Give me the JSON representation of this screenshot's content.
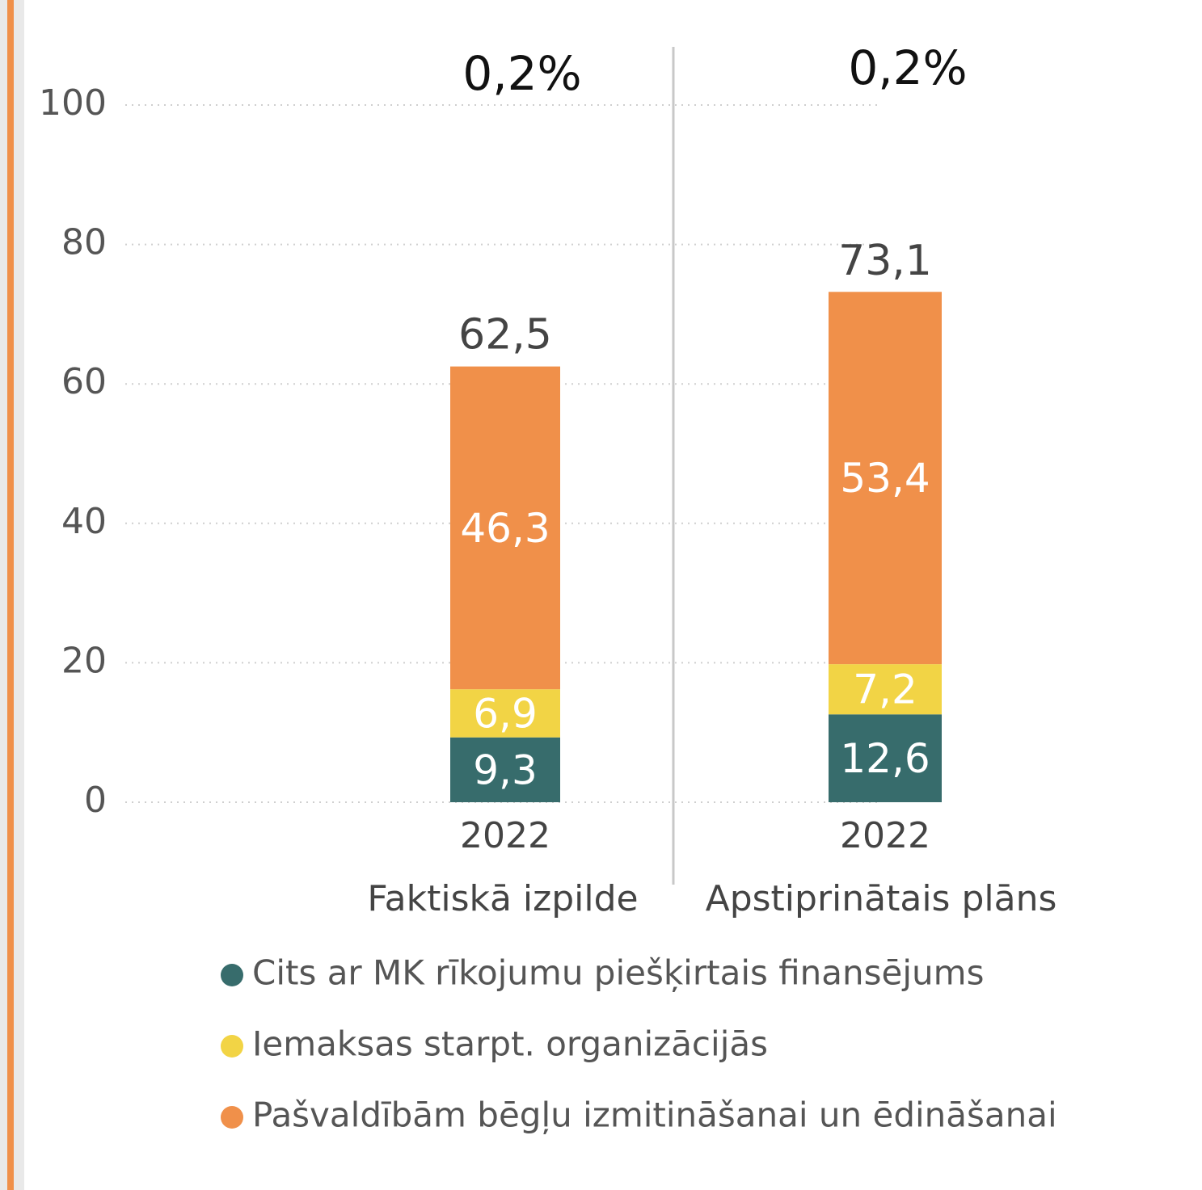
{
  "chart_data": {
    "type": "bar",
    "stacked": true,
    "groups": [
      "Faktiskā izpilde",
      "Apstiprinātais plāns"
    ],
    "categories": [
      "2022",
      "2022"
    ],
    "annotations": [
      "0,2%",
      "0,2%"
    ],
    "series": [
      {
        "name": "Cits ar MK rīkojumu piešķirtais finansējums",
        "color": "#376c6c",
        "values": [
          9.3,
          12.6
        ],
        "value_labels": [
          "9,3",
          "12,6"
        ]
      },
      {
        "name": "Iemaksas starpt. organizācijās",
        "color": "#f2d445",
        "values": [
          6.9,
          7.2
        ],
        "value_labels": [
          "6,9",
          "7,2"
        ]
      },
      {
        "name": "Pašvaldībām bēgļu izmitināšanai un ēdināšanai",
        "color": "#f0904a",
        "values": [
          46.3,
          53.4
        ],
        "value_labels": [
          "46,3",
          "53,4"
        ]
      }
    ],
    "totals": [
      62.5,
      73.1
    ],
    "total_labels": [
      "62,5",
      "73,1"
    ],
    "ylim": [
      0,
      100
    ],
    "yticks": [
      0,
      20,
      40,
      60,
      80,
      100
    ],
    "grid": true
  }
}
